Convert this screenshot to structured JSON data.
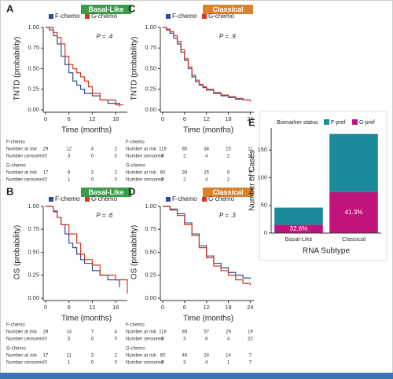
{
  "chart_data": [
    {
      "type": "step",
      "panel": "A",
      "banner": "Basal-Like",
      "banner_color": "#3b9d4a",
      "p_value": "P = .4",
      "xlabel": "Time (months)",
      "ylabel": "TNTD (probability)",
      "xlim": [
        0,
        21
      ],
      "ylim": [
        0,
        1
      ],
      "xticks": [
        0,
        6,
        12,
        18
      ],
      "yticks": [
        {
          "value": 0,
          "label": "0.00"
        },
        {
          "value": 0.25,
          "label": "0.25"
        },
        {
          "value": 0.5,
          "label": "0.50"
        },
        {
          "value": 0.75,
          "label": "0.75"
        },
        {
          "value": 1,
          "label": "1.00"
        }
      ],
      "series": [
        {
          "name": "F-chemo",
          "color": "#2a4e9b",
          "x": [
            0,
            1,
            2,
            3,
            4,
            5,
            6,
            7,
            8,
            9,
            10,
            12,
            14,
            16,
            19
          ],
          "values": [
            1,
            0.97,
            0.9,
            0.8,
            0.65,
            0.55,
            0.45,
            0.35,
            0.3,
            0.25,
            0.2,
            0.17,
            0.12,
            0.08,
            0.04
          ]
        },
        {
          "name": "G-chemo",
          "color": "#d23a25",
          "x": [
            0,
            2,
            3,
            4,
            5,
            6,
            7,
            8,
            9,
            10,
            11,
            12,
            14,
            18,
            20
          ],
          "values": [
            1,
            0.94,
            0.88,
            0.8,
            0.65,
            0.55,
            0.5,
            0.45,
            0.4,
            0.35,
            0.28,
            0.2,
            0.12,
            0.06,
            0.06
          ]
        }
      ],
      "risk_table": [
        {
          "group": "F-chemo",
          "rows": [
            {
              "label": "Number at risk",
              "values": [
                29,
                12,
                4,
                2
              ]
            },
            {
              "label": "Number censored",
              "values": [
                0,
                3,
                0,
                0
              ]
            }
          ]
        },
        {
          "group": "G-chemo",
          "rows": [
            {
              "label": "Number at risk",
              "values": [
                17,
                9,
                3,
                2
              ]
            },
            {
              "label": "Number censored",
              "values": [
                0,
                1,
                0,
                0
              ]
            }
          ]
        }
      ]
    },
    {
      "type": "step",
      "panel": "B",
      "banner": "Basal-Like",
      "banner_color": "#3b9d4a",
      "p_value": "P = .6",
      "xlabel": "Time (months)",
      "ylabel": "OS (probability)",
      "xlim": [
        0,
        21
      ],
      "ylim": [
        0,
        1
      ],
      "xticks": [
        0,
        6,
        12,
        18
      ],
      "yticks": [
        {
          "value": 0,
          "label": "0.00"
        },
        {
          "value": 0.25,
          "label": "0.25"
        },
        {
          "value": 0.5,
          "label": "0.50"
        },
        {
          "value": 0.75,
          "label": "0.75"
        },
        {
          "value": 1,
          "label": "1.00"
        }
      ],
      "series": [
        {
          "name": "F-chemo",
          "color": "#2a4e9b",
          "x": [
            0,
            2,
            3,
            4,
            5,
            6,
            7,
            8,
            9,
            10,
            12,
            14,
            16,
            19
          ],
          "values": [
            1,
            0.95,
            0.88,
            0.8,
            0.7,
            0.6,
            0.55,
            0.48,
            0.42,
            0.38,
            0.3,
            0.25,
            0.2,
            0.12
          ]
        },
        {
          "name": "G-chemo",
          "color": "#d23a25",
          "x": [
            0,
            2,
            3,
            4,
            6,
            8,
            9,
            10,
            12,
            14,
            18,
            21
          ],
          "values": [
            1,
            0.94,
            0.88,
            0.8,
            0.7,
            0.6,
            0.48,
            0.42,
            0.36,
            0.25,
            0.2,
            0.05
          ]
        }
      ],
      "risk_table": [
        {
          "group": "F-chemo",
          "rows": [
            {
              "label": "Number at risk",
              "values": [
                29,
                14,
                7,
                4
              ]
            },
            {
              "label": "Number censored",
              "values": [
                0,
                5,
                0,
                0
              ]
            }
          ]
        },
        {
          "group": "G-chemo",
          "rows": [
            {
              "label": "Number at risk",
              "values": [
                17,
                11,
                3,
                2
              ]
            },
            {
              "label": "Number censored",
              "values": [
                0,
                1,
                0,
                0
              ]
            }
          ]
        }
      ]
    },
    {
      "type": "step",
      "panel": "C",
      "banner": "Classical",
      "banner_color": "#d9822b",
      "p_value": "P = .9",
      "xlabel": "Time (months)",
      "ylabel": "TNTD (probability)",
      "xlim": [
        0,
        25
      ],
      "ylim": [
        0,
        1
      ],
      "xticks": [
        0,
        6,
        12,
        18,
        24
      ],
      "yticks": [
        {
          "value": 0,
          "label": "0.00"
        },
        {
          "value": 0.25,
          "label": "0.25"
        },
        {
          "value": 0.5,
          "label": "0.50"
        },
        {
          "value": 0.75,
          "label": "0.75"
        },
        {
          "value": 1,
          "label": "1.00"
        }
      ],
      "series": [
        {
          "name": "F-chemo",
          "color": "#2a4e9b",
          "x": [
            0,
            1,
            2,
            3,
            4,
            5,
            6,
            7,
            8,
            9,
            10,
            11,
            12,
            14,
            16,
            18,
            20,
            22,
            24
          ],
          "values": [
            1,
            0.97,
            0.93,
            0.87,
            0.8,
            0.7,
            0.6,
            0.5,
            0.4,
            0.34,
            0.3,
            0.27,
            0.24,
            0.2,
            0.17,
            0.15,
            0.13,
            0.12,
            0.12
          ]
        },
        {
          "name": "G-chemo",
          "color": "#d23a25",
          "x": [
            0,
            1,
            2,
            3,
            4,
            5,
            6,
            7,
            8,
            9,
            10,
            11,
            12,
            14,
            16,
            18,
            20,
            22,
            24
          ],
          "values": [
            1,
            0.98,
            0.95,
            0.9,
            0.83,
            0.73,
            0.62,
            0.52,
            0.42,
            0.36,
            0.31,
            0.28,
            0.25,
            0.21,
            0.18,
            0.16,
            0.14,
            0.12,
            0.1
          ]
        }
      ],
      "risk_table": [
        {
          "group": "F-chemo",
          "rows": [
            {
              "label": "Number at risk",
              "values": [
                119,
                85,
                34,
                15,
                11
              ]
            },
            {
              "label": "Number censored",
              "values": [
                0,
                2,
                4,
                2,
                11
              ]
            }
          ]
        },
        {
          "group": "G-chemo",
          "rows": [
            {
              "label": "Number at risk",
              "values": [
                60,
                39,
                15,
                9,
                6
              ]
            },
            {
              "label": "Number censored",
              "values": [
                0,
                2,
                4,
                2,
                6
              ]
            }
          ]
        }
      ]
    },
    {
      "type": "step",
      "panel": "D",
      "banner": "Classical",
      "banner_color": "#d9822b",
      "p_value": "P = .3",
      "xlabel": "Time (months)",
      "ylabel": "OS (probability)",
      "xlim": [
        0,
        25
      ],
      "ylim": [
        0,
        1
      ],
      "xticks": [
        0,
        6,
        12,
        18,
        24
      ],
      "yticks": [
        {
          "value": 0,
          "label": "0.00"
        },
        {
          "value": 0.25,
          "label": "0.25"
        },
        {
          "value": 0.5,
          "label": "0.50"
        },
        {
          "value": 0.75,
          "label": "0.75"
        },
        {
          "value": 1,
          "label": "1.00"
        }
      ],
      "series": [
        {
          "name": "F-chemo",
          "color": "#2a4e9b",
          "x": [
            0,
            2,
            4,
            6,
            8,
            10,
            12,
            14,
            16,
            18,
            20,
            22,
            24
          ],
          "values": [
            1,
            0.97,
            0.92,
            0.82,
            0.7,
            0.57,
            0.46,
            0.38,
            0.33,
            0.28,
            0.25,
            0.22,
            0.21
          ]
        },
        {
          "name": "G-chemo",
          "color": "#d23a25",
          "x": [
            0,
            2,
            4,
            6,
            8,
            10,
            12,
            14,
            16,
            18,
            20,
            22,
            24
          ],
          "values": [
            1,
            0.96,
            0.9,
            0.8,
            0.68,
            0.55,
            0.44,
            0.35,
            0.3,
            0.25,
            0.2,
            0.16,
            0.14
          ]
        }
      ],
      "risk_table": [
        {
          "group": "F-chemo",
          "rows": [
            {
              "label": "Number at risk",
              "values": [
                119,
                89,
                57,
                29,
                19
              ]
            },
            {
              "label": "Number censored",
              "values": [
                0,
                3,
                8,
                4,
                22
              ]
            }
          ]
        },
        {
          "group": "G-chemo",
          "rows": [
            {
              "label": "Number at risk",
              "values": [
                60,
                46,
                24,
                14,
                7
              ]
            },
            {
              "label": "Number censored",
              "values": [
                0,
                3,
                4,
                1,
                7
              ]
            }
          ]
        }
      ]
    },
    {
      "type": "stacked_bar",
      "panel": "E",
      "legend_title": "Biomarker status",
      "xlabel": "RNA Subtype",
      "ylabel": "Number of Cases",
      "categories": [
        "Basal-Like",
        "Classical"
      ],
      "ylim": [
        0,
        190
      ],
      "yticks": [
        0,
        50,
        100,
        150
      ],
      "series": [
        {
          "name": "G-pref",
          "color": "#c0147c",
          "values": [
            15,
            74
          ],
          "segment_labels": [
            "32.6%",
            "41.3%"
          ]
        },
        {
          "name": "F-pref",
          "color": "#1b8a9a",
          "values": [
            31,
            105
          ]
        }
      ]
    }
  ]
}
